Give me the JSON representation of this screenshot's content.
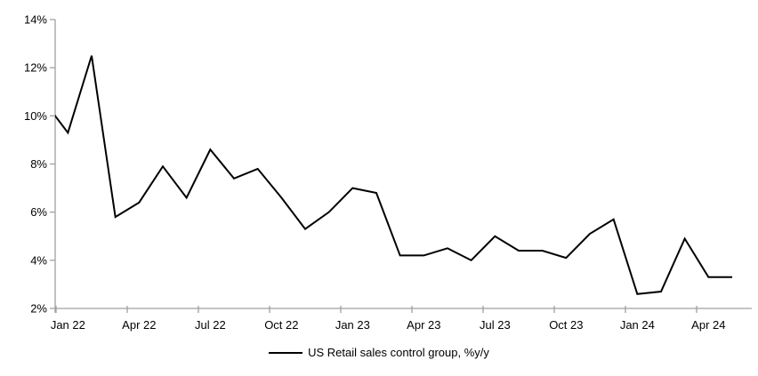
{
  "chart_data": {
    "type": "line",
    "title": "",
    "xlabel": "",
    "ylabel": "",
    "grid": false,
    "legend_position": "bottom",
    "ylim": [
      2,
      14
    ],
    "y_tick_step": 2,
    "axis_color": "#a0a0a0",
    "background_color": "#ffffff",
    "categories": [
      "Dec 21",
      "Jan 22",
      "Feb 22",
      "Mar 22",
      "Apr 22",
      "May 22",
      "Jun 22",
      "Jul 22",
      "Aug 22",
      "Sep 22",
      "Oct 22",
      "Nov 22",
      "Dec 22",
      "Jan 23",
      "Feb 23",
      "Mar 23",
      "Apr 23",
      "May 23",
      "Jun 23",
      "Jul 23",
      "Aug 23",
      "Sep 23",
      "Oct 23",
      "Nov 23",
      "Dec 23",
      "Jan 24",
      "Feb 24",
      "Mar 24",
      "Apr 24",
      "May 24"
    ],
    "series": [
      {
        "name": "US Retail sales control group, %y/y",
        "color": "#000000",
        "values": [
          10.6,
          9.3,
          12.5,
          5.8,
          6.4,
          7.9,
          6.6,
          8.6,
          7.4,
          7.8,
          6.6,
          5.3,
          6.0,
          7.0,
          6.8,
          4.2,
          4.2,
          4.5,
          4.0,
          5.0,
          4.4,
          4.4,
          4.1,
          5.1,
          5.7,
          2.6,
          2.7,
          4.9,
          3.3,
          3.3
        ]
      }
    ],
    "first_category_clipped_by_left_axis": true,
    "y_ticks": [
      {
        "value": 2,
        "label": "2%"
      },
      {
        "value": 4,
        "label": "4%"
      },
      {
        "value": 6,
        "label": "6%"
      },
      {
        "value": 8,
        "label": "8%"
      },
      {
        "value": 10,
        "label": "10%"
      },
      {
        "value": 12,
        "label": "12%"
      },
      {
        "value": 14,
        "label": "14%"
      }
    ],
    "x_ticks": [
      "Jan 22",
      "Apr 22",
      "Jul 22",
      "Oct 22",
      "Jan 23",
      "Apr 23",
      "Jul 23",
      "Oct 23",
      "Jan 24",
      "Apr 24"
    ]
  },
  "legend": {
    "label": "US Retail sales control group, %y/y"
  }
}
